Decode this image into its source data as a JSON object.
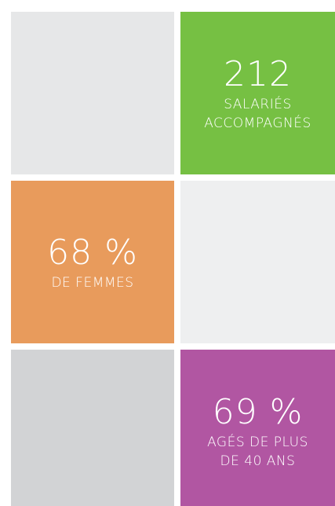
{
  "tiles": [
    {
      "value": "212",
      "label": [
        "SALARIÉS",
        "ACCOMPAGNÉS"
      ]
    },
    {
      "value": "68 %",
      "label": [
        "DE FEMMES"
      ]
    },
    {
      "value": "69 %",
      "label": [
        "AGÉS DE PLUS",
        "DE 40 ANS"
      ]
    }
  ]
}
